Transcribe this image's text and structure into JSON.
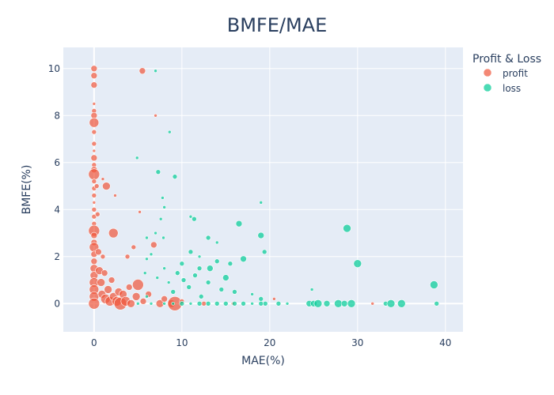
{
  "chart_data": {
    "type": "scatter",
    "title": "BMFE/MAE",
    "xlabel": "MAE(%)",
    "ylabel": "BMFE(%)",
    "xlim": [
      -3.5,
      42
    ],
    "ylim": [
      -1.2,
      10.9
    ],
    "xticks": [
      0,
      10,
      20,
      30,
      40
    ],
    "yticks": [
      0,
      2,
      4,
      6,
      8,
      10
    ],
    "grid": true,
    "legend": {
      "title": "Profit & Loss",
      "position": "top-right"
    },
    "series": [
      {
        "name": "profit",
        "color": "#EF553B",
        "points": [
          {
            "x": 0,
            "y": 10.0,
            "s": 4
          },
          {
            "x": 0,
            "y": 9.7,
            "s": 4
          },
          {
            "x": 0,
            "y": 9.3,
            "s": 4
          },
          {
            "x": 0,
            "y": 8.5,
            "s": 2
          },
          {
            "x": 0,
            "y": 8.2,
            "s": 3
          },
          {
            "x": 0,
            "y": 8.0,
            "s": 4
          },
          {
            "x": 0,
            "y": 7.7,
            "s": 6
          },
          {
            "x": 0,
            "y": 7.3,
            "s": 3
          },
          {
            "x": 0,
            "y": 6.8,
            "s": 3
          },
          {
            "x": 0,
            "y": 6.5,
            "s": 2
          },
          {
            "x": 0,
            "y": 6.2,
            "s": 4
          },
          {
            "x": 0,
            "y": 5.9,
            "s": 3
          },
          {
            "x": 0,
            "y": 5.7,
            "s": 4
          },
          {
            "x": 0,
            "y": 5.5,
            "s": 7
          },
          {
            "x": 0,
            "y": 5.2,
            "s": 3
          },
          {
            "x": 0,
            "y": 4.9,
            "s": 3
          },
          {
            "x": 0,
            "y": 4.6,
            "s": 3
          },
          {
            "x": 0,
            "y": 4.3,
            "s": 2
          },
          {
            "x": 0,
            "y": 4.0,
            "s": 3
          },
          {
            "x": 0,
            "y": 3.7,
            "s": 3
          },
          {
            "x": 0,
            "y": 3.4,
            "s": 3
          },
          {
            "x": 0,
            "y": 3.1,
            "s": 7
          },
          {
            "x": 0,
            "y": 2.9,
            "s": 4
          },
          {
            "x": 0,
            "y": 2.6,
            "s": 4
          },
          {
            "x": 0,
            "y": 2.4,
            "s": 6
          },
          {
            "x": 0,
            "y": 2.1,
            "s": 4
          },
          {
            "x": 0,
            "y": 1.8,
            "s": 4
          },
          {
            "x": 0,
            "y": 1.5,
            "s": 5
          },
          {
            "x": 0,
            "y": 1.2,
            "s": 5
          },
          {
            "x": 0,
            "y": 0.9,
            "s": 6
          },
          {
            "x": 0,
            "y": 0.6,
            "s": 6
          },
          {
            "x": 0,
            "y": 0.3,
            "s": 6
          },
          {
            "x": 0,
            "y": 0,
            "s": 7
          },
          {
            "x": 0.3,
            "y": 5.0,
            "s": 3
          },
          {
            "x": 0.4,
            "y": 3.8,
            "s": 3
          },
          {
            "x": 0.5,
            "y": 2.2,
            "s": 4
          },
          {
            "x": 0.6,
            "y": 1.4,
            "s": 5
          },
          {
            "x": 0.8,
            "y": 0.9,
            "s": 5
          },
          {
            "x": 0.9,
            "y": 0.4,
            "s": 5
          },
          {
            "x": 1.0,
            "y": 2.0,
            "s": 3
          },
          {
            "x": 1.0,
            "y": 5.3,
            "s": 2
          },
          {
            "x": 1.2,
            "y": 1.3,
            "s": 4
          },
          {
            "x": 1.3,
            "y": 0.2,
            "s": 6
          },
          {
            "x": 1.4,
            "y": 5.0,
            "s": 5
          },
          {
            "x": 1.6,
            "y": 0.6,
            "s": 5
          },
          {
            "x": 1.8,
            "y": 0.1,
            "s": 6
          },
          {
            "x": 2.0,
            "y": 1.0,
            "s": 4
          },
          {
            "x": 2.2,
            "y": 0.3,
            "s": 5
          },
          {
            "x": 2.2,
            "y": 3.0,
            "s": 6
          },
          {
            "x": 2.4,
            "y": 4.6,
            "s": 2
          },
          {
            "x": 2.6,
            "y": 0.1,
            "s": 6
          },
          {
            "x": 2.8,
            "y": 0.5,
            "s": 5
          },
          {
            "x": 3.0,
            "y": 0.0,
            "s": 8
          },
          {
            "x": 3.3,
            "y": 0.4,
            "s": 5
          },
          {
            "x": 3.6,
            "y": 0.1,
            "s": 6
          },
          {
            "x": 3.8,
            "y": 2.0,
            "s": 3
          },
          {
            "x": 4.0,
            "y": 0.7,
            "s": 4
          },
          {
            "x": 4.2,
            "y": 0.0,
            "s": 5
          },
          {
            "x": 4.5,
            "y": 2.4,
            "s": 3
          },
          {
            "x": 4.8,
            "y": 0.3,
            "s": 5
          },
          {
            "x": 5.0,
            "y": 0.8,
            "s": 7
          },
          {
            "x": 5.2,
            "y": 3.9,
            "s": 2
          },
          {
            "x": 5.5,
            "y": 9.9,
            "s": 4
          },
          {
            "x": 5.6,
            "y": 0.1,
            "s": 4
          },
          {
            "x": 6.2,
            "y": 0.4,
            "s": 4
          },
          {
            "x": 6.8,
            "y": 2.5,
            "s": 4
          },
          {
            "x": 7.0,
            "y": 8.0,
            "s": 2
          },
          {
            "x": 7.5,
            "y": 0.0,
            "s": 5
          },
          {
            "x": 8.0,
            "y": 0.2,
            "s": 4
          },
          {
            "x": 8.8,
            "y": 0.0,
            "s": 5
          },
          {
            "x": 9.2,
            "y": 0.0,
            "s": 9
          },
          {
            "x": 10.0,
            "y": 0.1,
            "s": 3
          },
          {
            "x": 12.5,
            "y": 0.0,
            "s": 3
          },
          {
            "x": 15.8,
            "y": 0.0,
            "s": 2
          },
          {
            "x": 20.5,
            "y": 0.2,
            "s": 2
          },
          {
            "x": 31.7,
            "y": 0.0,
            "s": 2
          }
        ]
      },
      {
        "name": "loss",
        "color": "#00CC96",
        "points": [
          {
            "x": 7.0,
            "y": 9.9,
            "s": 2
          },
          {
            "x": 8.6,
            "y": 7.3,
            "s": 2
          },
          {
            "x": 4.9,
            "y": 6.2,
            "s": 2
          },
          {
            "x": 7.3,
            "y": 5.6,
            "s": 3
          },
          {
            "x": 9.2,
            "y": 5.4,
            "s": 3
          },
          {
            "x": 7.8,
            "y": 4.5,
            "s": 2
          },
          {
            "x": 8.0,
            "y": 4.1,
            "s": 2
          },
          {
            "x": 11.0,
            "y": 3.7,
            "s": 2
          },
          {
            "x": 11.4,
            "y": 3.6,
            "s": 3
          },
          {
            "x": 7.6,
            "y": 3.6,
            "s": 2
          },
          {
            "x": 7.0,
            "y": 3.0,
            "s": 2
          },
          {
            "x": 6.0,
            "y": 2.8,
            "s": 2
          },
          {
            "x": 16.5,
            "y": 3.4,
            "s": 4
          },
          {
            "x": 19.0,
            "y": 4.3,
            "s": 2
          },
          {
            "x": 28.8,
            "y": 3.2,
            "s": 5
          },
          {
            "x": 19.0,
            "y": 2.9,
            "s": 4
          },
          {
            "x": 13.0,
            "y": 2.8,
            "s": 3
          },
          {
            "x": 14.0,
            "y": 2.6,
            "s": 2
          },
          {
            "x": 7.9,
            "y": 2.8,
            "s": 2
          },
          {
            "x": 11.0,
            "y": 2.2,
            "s": 3
          },
          {
            "x": 19.4,
            "y": 2.2,
            "s": 3
          },
          {
            "x": 12.0,
            "y": 2.0,
            "s": 2
          },
          {
            "x": 17.0,
            "y": 1.9,
            "s": 4
          },
          {
            "x": 6.0,
            "y": 1.9,
            "s": 2
          },
          {
            "x": 10.0,
            "y": 1.7,
            "s": 3
          },
          {
            "x": 30.0,
            "y": 1.7,
            "s": 5
          },
          {
            "x": 14.0,
            "y": 1.8,
            "s": 3
          },
          {
            "x": 12.0,
            "y": 1.5,
            "s": 3
          },
          {
            "x": 13.2,
            "y": 1.5,
            "s": 4
          },
          {
            "x": 15.5,
            "y": 1.7,
            "s": 3
          },
          {
            "x": 8.0,
            "y": 1.5,
            "s": 2
          },
          {
            "x": 9.5,
            "y": 1.3,
            "s": 3
          },
          {
            "x": 10.2,
            "y": 1.0,
            "s": 3
          },
          {
            "x": 11.5,
            "y": 1.2,
            "s": 3
          },
          {
            "x": 15.0,
            "y": 1.1,
            "s": 4
          },
          {
            "x": 7.2,
            "y": 1.1,
            "s": 2
          },
          {
            "x": 10.8,
            "y": 0.7,
            "s": 3
          },
          {
            "x": 13.0,
            "y": 0.9,
            "s": 3
          },
          {
            "x": 14.5,
            "y": 0.6,
            "s": 3
          },
          {
            "x": 16.0,
            "y": 0.5,
            "s": 3
          },
          {
            "x": 18.0,
            "y": 0.4,
            "s": 2
          },
          {
            "x": 19.0,
            "y": 0.2,
            "s": 3
          },
          {
            "x": 12.2,
            "y": 0.3,
            "s": 3
          },
          {
            "x": 9.0,
            "y": 0.5,
            "s": 3
          },
          {
            "x": 24.8,
            "y": 0.6,
            "s": 2
          },
          {
            "x": 38.7,
            "y": 0.8,
            "s": 5
          },
          {
            "x": 6.0,
            "y": 0.3,
            "s": 2
          },
          {
            "x": 8.5,
            "y": 0.9,
            "s": 2
          },
          {
            "x": 5.8,
            "y": 1.3,
            "s": 2
          },
          {
            "x": 6.5,
            "y": 2.1,
            "s": 2
          },
          {
            "x": 5.0,
            "y": 0,
            "s": 2
          },
          {
            "x": 6.5,
            "y": 0,
            "s": 2
          },
          {
            "x": 8.0,
            "y": 0,
            "s": 2
          },
          {
            "x": 9.0,
            "y": 0,
            "s": 2
          },
          {
            "x": 10.0,
            "y": 0,
            "s": 3
          },
          {
            "x": 11.0,
            "y": 0,
            "s": 2
          },
          {
            "x": 12.0,
            "y": 0,
            "s": 3
          },
          {
            "x": 13.0,
            "y": 0,
            "s": 3
          },
          {
            "x": 14.0,
            "y": 0,
            "s": 3
          },
          {
            "x": 15.0,
            "y": 0,
            "s": 3
          },
          {
            "x": 16.0,
            "y": 0,
            "s": 3
          },
          {
            "x": 17.0,
            "y": 0,
            "s": 3
          },
          {
            "x": 18.0,
            "y": 0,
            "s": 2
          },
          {
            "x": 19.0,
            "y": 0,
            "s": 3
          },
          {
            "x": 19.5,
            "y": 0,
            "s": 3
          },
          {
            "x": 21.0,
            "y": 0,
            "s": 3
          },
          {
            "x": 22.0,
            "y": 0,
            "s": 2
          },
          {
            "x": 24.5,
            "y": 0,
            "s": 4
          },
          {
            "x": 25.0,
            "y": 0,
            "s": 4
          },
          {
            "x": 25.5,
            "y": 0,
            "s": 5
          },
          {
            "x": 26.5,
            "y": 0,
            "s": 4
          },
          {
            "x": 27.8,
            "y": 0,
            "s": 5
          },
          {
            "x": 28.5,
            "y": 0,
            "s": 4
          },
          {
            "x": 29.3,
            "y": 0,
            "s": 5
          },
          {
            "x": 33.2,
            "y": 0,
            "s": 3
          },
          {
            "x": 33.8,
            "y": 0,
            "s": 5
          },
          {
            "x": 35.0,
            "y": 0,
            "s": 5
          },
          {
            "x": 39.0,
            "y": 0,
            "s": 3
          }
        ]
      }
    ]
  }
}
